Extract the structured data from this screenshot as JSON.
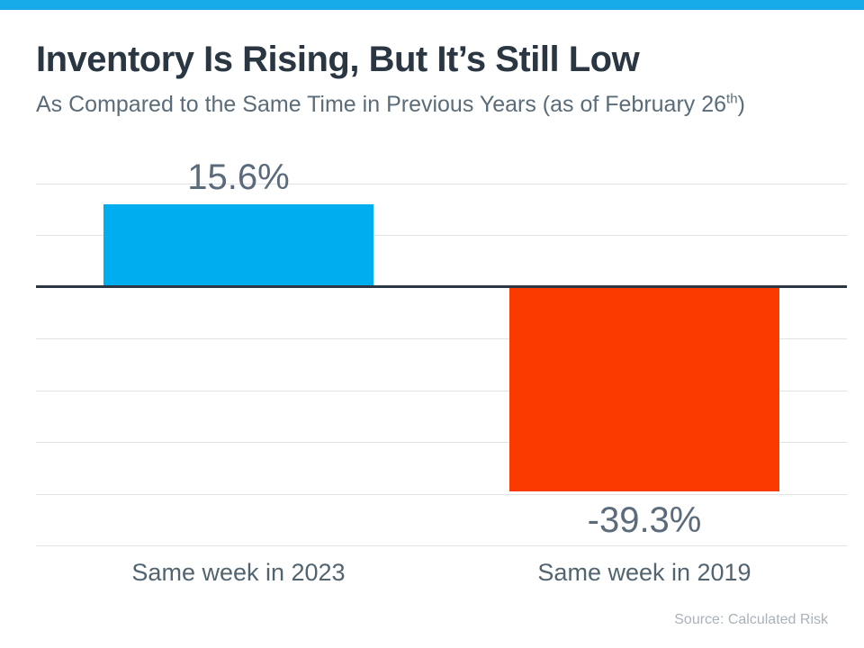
{
  "page": {
    "accent_strip_color": "#17ACE9",
    "background_color": "#FFFFFF"
  },
  "header": {
    "title": "Inventory Is Rising, But It’s Still Low",
    "subtitle_prefix": "As Compared to the Same Time in Previous Years (as of February 26",
    "subtitle_sup": "th",
    "subtitle_suffix": ")"
  },
  "chart_data": {
    "type": "bar",
    "title": "Inventory Is Rising, But It’s Still Low",
    "subtitle": "As Compared to the Same Time in Previous Years (as of February 26th)",
    "categories": [
      "Same week in 2023",
      "Same week in 2019"
    ],
    "values": [
      15.6,
      -39.3
    ],
    "value_labels": [
      "15.6%",
      "-39.3%"
    ],
    "bar_colors": [
      "#00AEEF",
      "#FB3A00"
    ],
    "xlabel": "",
    "ylabel": "",
    "ylim": [
      -50,
      20
    ],
    "grid_step": 10,
    "grid": true,
    "legend": false,
    "grid_color": "#E0E2E4",
    "zero_line_color": "#2B3844",
    "value_label_color": "#5B6B7B",
    "category_label_color": "#52646F"
  },
  "footer": {
    "source": "Source: Calculated Risk"
  }
}
